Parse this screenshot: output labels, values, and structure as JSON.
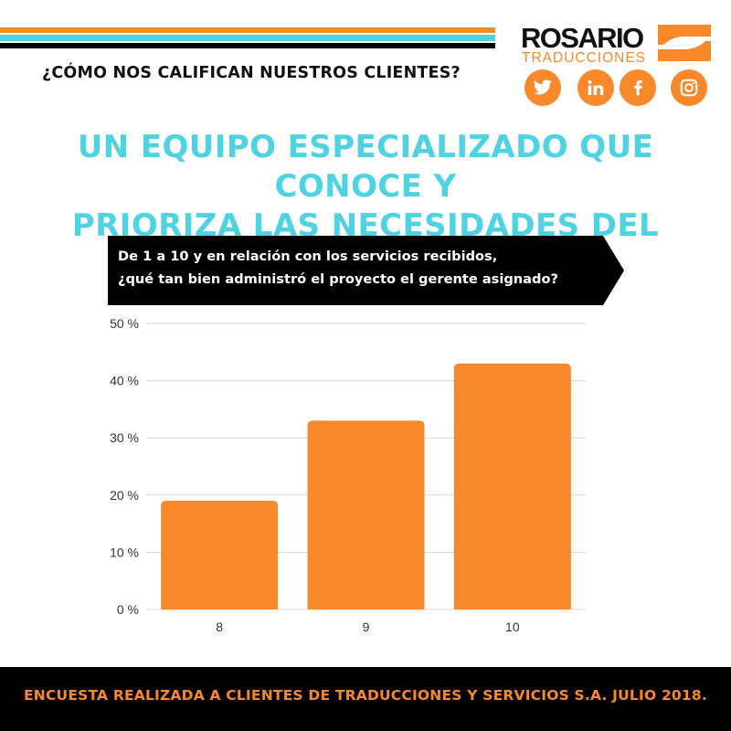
{
  "colors": {
    "orange": "#f7892b",
    "cyan": "#4fd3e3",
    "black": "#000000",
    "grid": "#d9d9d9",
    "axis_text": "#333333"
  },
  "header": {
    "question": "¿CÓMO NOS CALIFICAN NUESTROS CLIENTES?"
  },
  "logo": {
    "name": "ROSARIO",
    "subtitle": "TRADUCCIONES"
  },
  "social": [
    {
      "icon": "twitter-icon"
    },
    {
      "icon": "linkedin-icon"
    },
    {
      "icon": "facebook-icon"
    },
    {
      "icon": "instagram-icon"
    }
  ],
  "headline": {
    "line1": "UN EQUIPO ESPECIALIZADO QUE CONOCE Y",
    "line2": "PRIORIZA LAS NECESIDADES DEL CLIENTE"
  },
  "question_box": {
    "line1": "De 1 a 10 y en relación  con los servicios recibidos,",
    "line2": " ¿qué tan bien administró el  proyecto el gerente asignado?"
  },
  "chart_data": {
    "type": "bar",
    "categories": [
      "8",
      "9",
      "10"
    ],
    "values": [
      19,
      33,
      43
    ],
    "ylim": [
      0,
      50
    ],
    "yticks": [
      0,
      10,
      20,
      30,
      40,
      50
    ],
    "ytick_labels": [
      "0 %",
      "10 %",
      "20 %",
      "30 %",
      "40 %",
      "50 %"
    ],
    "grid": true,
    "xlabel": "",
    "ylabel": ""
  },
  "footer": {
    "text": "ENCUESTA REALIZADA A CLIENTES DE TRADUCCIONES Y SERVICIOS S.A. JULIO 2018."
  }
}
